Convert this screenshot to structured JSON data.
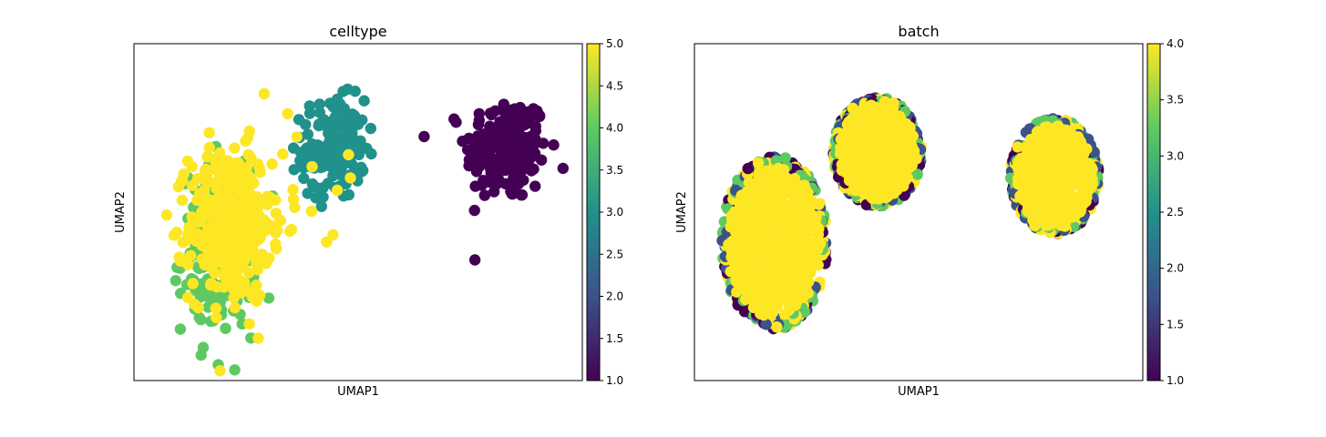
{
  "colormap": [
    "#440154",
    "#3b528b",
    "#21918c",
    "#5ec962",
    "#fde725"
  ],
  "chart_data": [
    {
      "type": "scatter",
      "title": "celltype",
      "xlabel": "UMAP1",
      "ylabel": "UMAP2",
      "xticks": false,
      "yticks": false,
      "colorbar": {
        "range": [
          1.0,
          5.0
        ],
        "ticks": [
          "1.0",
          "1.5",
          "2.0",
          "2.5",
          "3.0",
          "3.5",
          "4.0",
          "4.5",
          "5.0"
        ]
      },
      "clusters": [
        {
          "value": 1,
          "center": [
            8.6,
            7.1
          ],
          "spread": [
            0.9,
            1.6
          ],
          "count": 220
        },
        {
          "value": 3,
          "center": [
            4.4,
            7.1
          ],
          "spread": [
            0.7,
            1.5
          ],
          "count": 160
        },
        {
          "value": 4,
          "center": [
            1.6,
            3.7
          ],
          "spread": [
            0.8,
            2.5
          ],
          "count": 200
        },
        {
          "value": 5,
          "center": [
            1.9,
            4.6
          ],
          "spread": [
            0.9,
            2.3
          ],
          "count": 420
        }
      ]
    },
    {
      "type": "scatter",
      "title": "batch",
      "xlabel": "UMAP1",
      "ylabel": "UMAP2",
      "xticks": false,
      "yticks": false,
      "colorbar": {
        "range": [
          1.0,
          4.0
        ],
        "ticks": [
          "1.0",
          "1.5",
          "2.0",
          "2.5",
          "3.0",
          "3.5",
          "4.0"
        ]
      },
      "clusters": [
        {
          "region": [
            1.5,
            4.0,
            1.2,
            2.7
          ],
          "mix": [
            1,
            2,
            3,
            4
          ]
        },
        {
          "region": [
            4.0,
            7.0,
            1.0,
            1.7
          ],
          "mix": [
            1,
            2,
            3,
            4
          ]
        },
        {
          "region": [
            8.3,
            6.2,
            1.0,
            1.8
          ],
          "mix": [
            1,
            2,
            3,
            4
          ]
        }
      ]
    }
  ]
}
